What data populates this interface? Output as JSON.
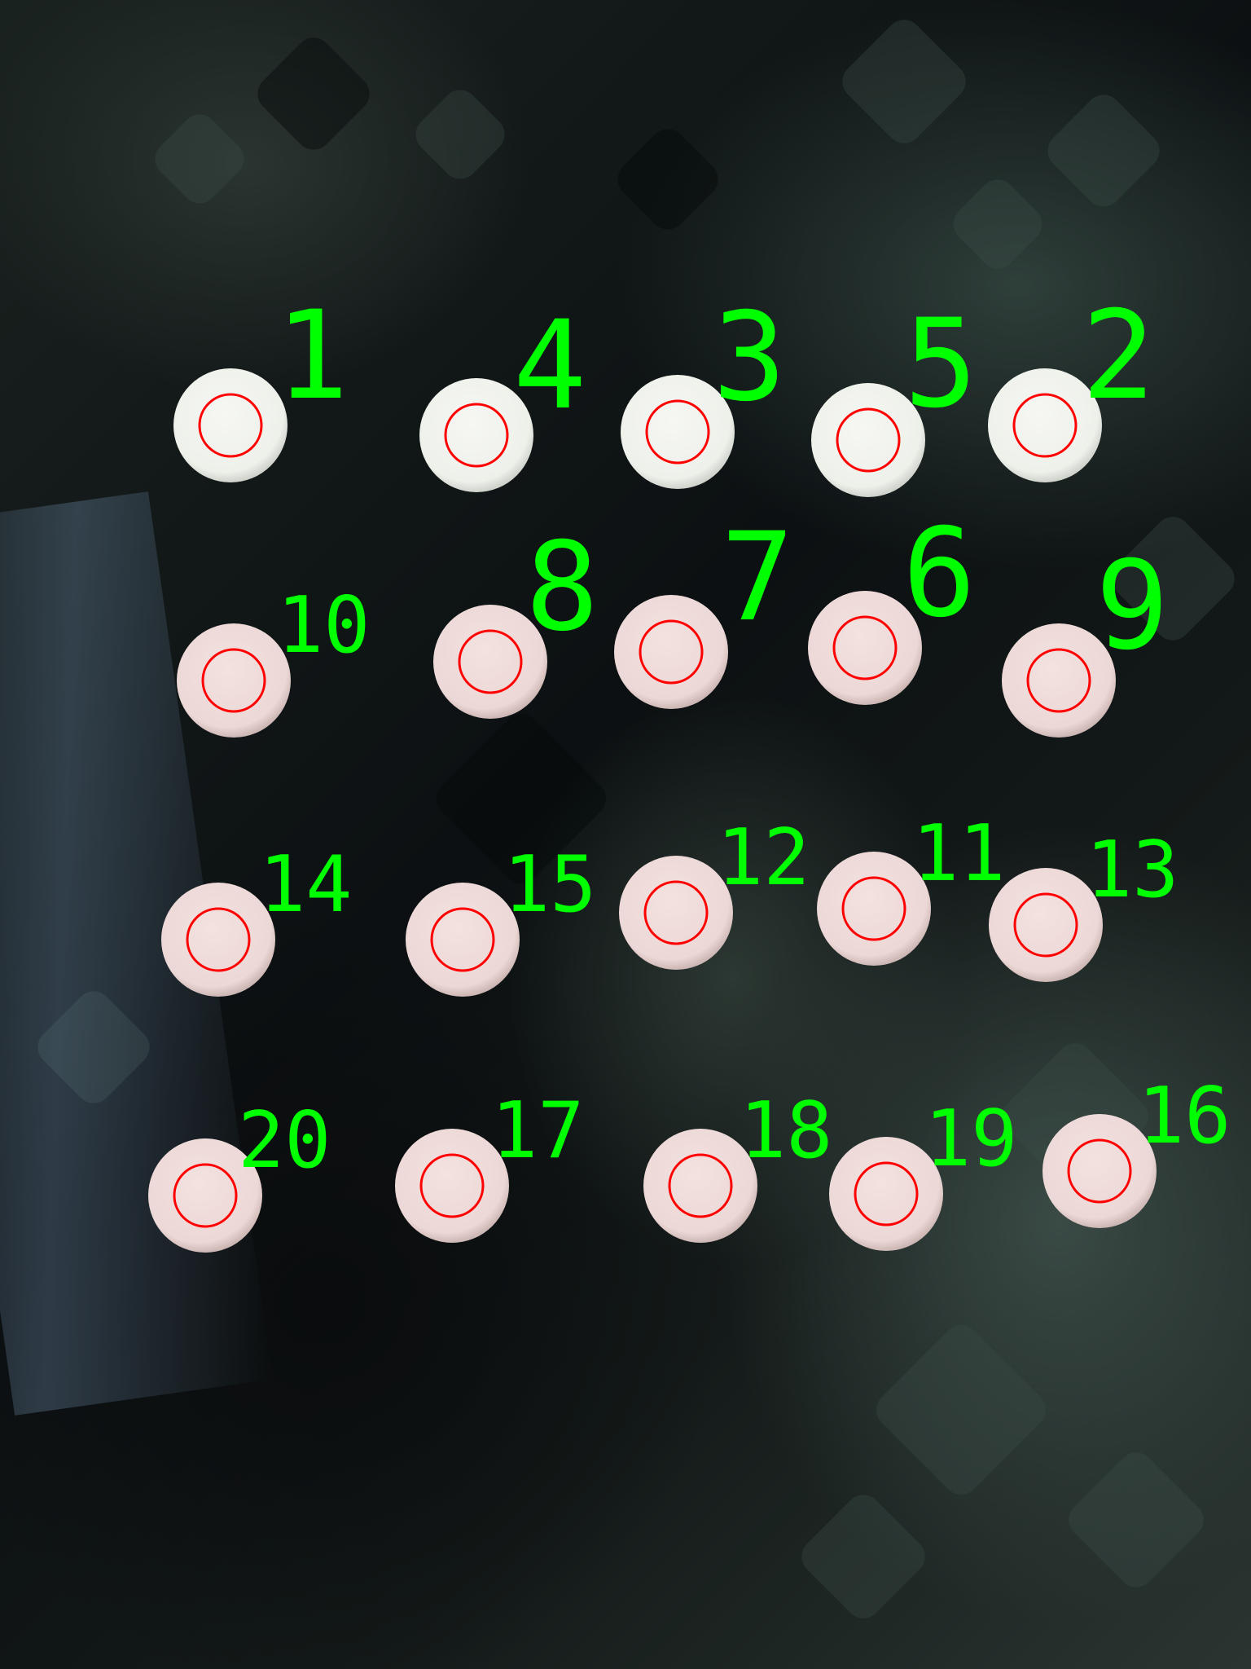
{
  "markers": [
    {
      "label": "1",
      "label_size": "big"
    },
    {
      "label": "4",
      "label_size": "big"
    },
    {
      "label": "3",
      "label_size": "big"
    },
    {
      "label": "5",
      "label_size": "big"
    },
    {
      "label": "2",
      "label_size": "big"
    },
    {
      "label": "10",
      "label_size": "small"
    },
    {
      "label": "8",
      "label_size": "big"
    },
    {
      "label": "7",
      "label_size": "big"
    },
    {
      "label": "6",
      "label_size": "big"
    },
    {
      "label": "9",
      "label_size": "big"
    },
    {
      "label": "14",
      "label_size": "small"
    },
    {
      "label": "15",
      "label_size": "small"
    },
    {
      "label": "12",
      "label_size": "small"
    },
    {
      "label": "11",
      "label_size": "small"
    },
    {
      "label": "13",
      "label_size": "small"
    },
    {
      "label": "20",
      "label_size": "small"
    },
    {
      "label": "17",
      "label_size": "small"
    },
    {
      "label": "18",
      "label_size": "small"
    },
    {
      "label": "19",
      "label_size": "small"
    },
    {
      "label": "16",
      "label_size": "small"
    }
  ],
  "colors": {
    "label": "#00ff00",
    "circle_outline": "#ff0000",
    "disc_white": "#eef0ea",
    "disc_pink": "#ecd8d6"
  }
}
